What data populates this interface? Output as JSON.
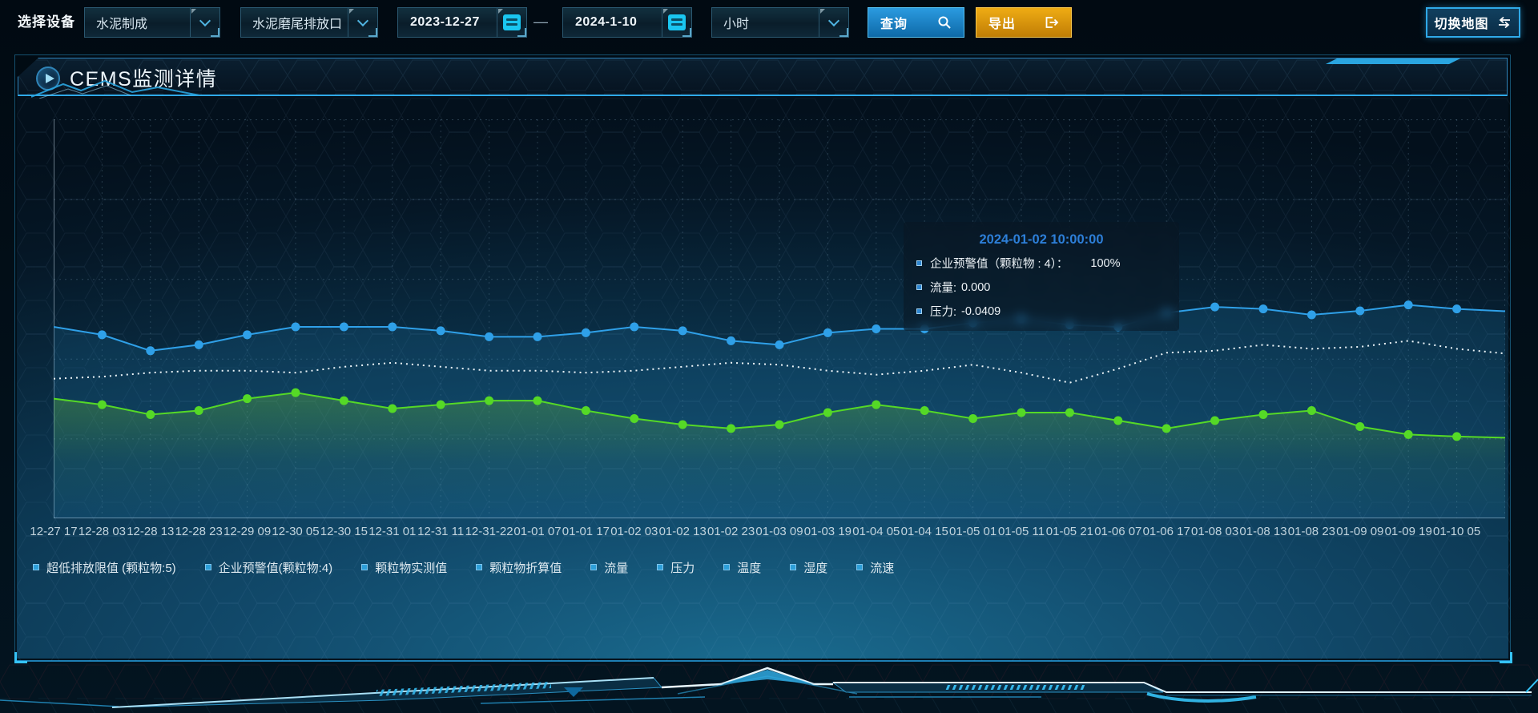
{
  "toolbar": {
    "device_label": "选择设备",
    "selects": [
      {
        "id": "category",
        "value": "水泥制成"
      },
      {
        "id": "outlet",
        "value": "水泥磨尾排放口"
      },
      {
        "id": "interval",
        "value": "小时"
      }
    ],
    "date_start": "2023-12-27",
    "date_separator": "—",
    "date_end": "2024-1-10",
    "query_label": "查询",
    "export_label": "导出",
    "switch_map_label": "切换地图",
    "icons": {
      "query": "search-icon",
      "export": "export-arrow-icon",
      "dates": "calendar-icon",
      "selects": "chevron-down-icon",
      "switch_map": "swap-arrows-icon"
    }
  },
  "panel": {
    "title": "CEMS监测详情",
    "title_icon": "play-icon"
  },
  "tooltip": {
    "title": "2024-01-02 10:00:00",
    "rows": [
      {
        "label": "企业预警值（颗粒物 : 4）：",
        "value": "100%"
      },
      {
        "label": "流量:",
        "value": "0.000"
      },
      {
        "label": "压力:",
        "value": "-0.0409"
      }
    ]
  },
  "chart_data": {
    "type": "line",
    "title": "",
    "xlabel": "",
    "ylabel": "",
    "ylim": [
      0,
      100
    ],
    "grid": true,
    "legend_position": "bottom",
    "legend": [
      "超低排放限值 (颗粒物:5)",
      "企业预警值(颗粒物:4)",
      "颗粒物实测值",
      "颗粒物折算值",
      "流量",
      "压力",
      "温度",
      "湿度",
      "流速"
    ],
    "x": [
      "12-27 17",
      "12-28 03",
      "12-28 13",
      "12-28 23",
      "12-29 09",
      "12-30 05",
      "12-30 15",
      "12-31 01",
      "12-31 11",
      "12-31-22",
      "01-01 07",
      "01-01 17",
      "01-02 03",
      "01-02 13",
      "01-02 23",
      "01-03 09",
      "01-03 19",
      "01-04 05",
      "01-04 15",
      "01-05 01",
      "01-05 11",
      "01-05 21",
      "01-06 07",
      "01-06 17",
      "01-08 03",
      "01-08 13",
      "01-08 23",
      "01-09 09",
      "01-09 19",
      "01-10 05"
    ],
    "series": [
      {
        "name": "流量",
        "color": "#2fa0e8",
        "style": "solid",
        "markers": true,
        "area": true,
        "values": [
          48,
          46,
          42,
          43.5,
          46,
          48,
          48,
          48,
          47,
          45.5,
          45.5,
          46.5,
          48,
          47,
          44.5,
          43.5,
          46.5,
          47.5,
          47.5,
          49,
          50,
          48.5,
          48,
          51.5,
          53,
          52.5,
          51,
          52,
          53.5,
          52.5
        ]
      },
      {
        "name": "企业预警值(颗粒物:4)",
        "color": "#eef6fa",
        "style": "dotted",
        "markers": false,
        "area": false,
        "values": [
          35,
          35.5,
          36.5,
          37,
          37,
          36.5,
          38,
          39,
          38,
          37,
          37,
          36.5,
          37,
          38,
          39,
          38.5,
          37,
          36,
          37,
          38.5,
          36.5,
          34,
          37.5,
          41.5,
          42,
          43.5,
          42.5,
          43,
          44.5,
          42.5
        ]
      },
      {
        "name": "压力",
        "color": "#55d926",
        "style": "solid",
        "markers": true,
        "area": true,
        "values": [
          30,
          28.5,
          26,
          27,
          30,
          31.5,
          29.5,
          27.5,
          28.5,
          29.5,
          29.5,
          27,
          25,
          23.5,
          22.5,
          23.5,
          26.5,
          28.5,
          27,
          25,
          26.5,
          26.5,
          24.5,
          22.5,
          24.5,
          26,
          27,
          23,
          21,
          20.5
        ]
      }
    ]
  },
  "colors": {
    "accent": "#2aa5e0",
    "query_button": "#1181c2",
    "export_button": "#d9930f",
    "line_blue": "#2fa0e8",
    "line_white": "#eef6fa",
    "line_green": "#55d926",
    "tooltip_title": "#2d7fd8"
  }
}
